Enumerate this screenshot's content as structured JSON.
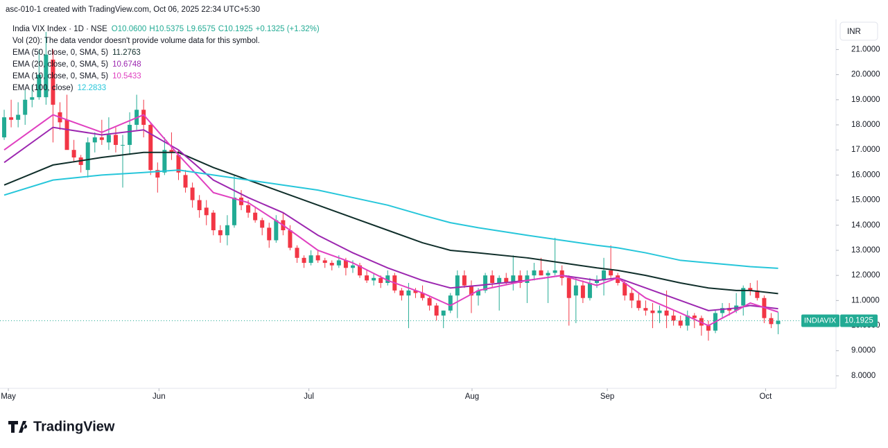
{
  "chart_data": {
    "type": "candlestick",
    "watermark": "asc-010-1 created with TradingView.com, Oct 06, 2025 22:34 UTC+5:30",
    "symbol": "India VIX Index · 1D · NSE",
    "ohlc_labels": [
      "O10.0600",
      "H10.5375",
      "L9.6575",
      "C10.1925",
      "+0.1325 (+1.32%)"
    ],
    "volume_note": "Vol (20): The data vendor doesn't provide volume data for this symbol.",
    "currency": "INR",
    "brand": "TradingView",
    "up_color": "#22ab94",
    "down_color": "#f23645",
    "price_tag": {
      "name": "INDIAVIX",
      "value": 10.1925,
      "label": "10.1925"
    },
    "candles": {
      "open": [
        17.5,
        18.3,
        18.2,
        18.4,
        19.0,
        19.1,
        19.1,
        20.6,
        18.5,
        18.2,
        17.0,
        16.7,
        16.2,
        17.3,
        17.5,
        17.3,
        17.6,
        17.2,
        17.2,
        18.0,
        18.6,
        18.0,
        16.2,
        16.1,
        17.0,
        16.8,
        16.0,
        15.5,
        15.0,
        14.7,
        14.5,
        13.8,
        13.6,
        14.0,
        15.1,
        14.8,
        14.5,
        14.2,
        13.9,
        13.4,
        14.2,
        13.8,
        13.1,
        12.7,
        12.5,
        12.8,
        12.6,
        12.5,
        12.4,
        12.6,
        12.3,
        12.4,
        12.0,
        11.8,
        11.9,
        11.7,
        12.0,
        11.4,
        11.2,
        11.4,
        11.3,
        11.1,
        10.8,
        10.4,
        10.6,
        11.2,
        12.0,
        11.6,
        11.2,
        11.4,
        12.0,
        11.7,
        11.9,
        11.7,
        12.0,
        11.7,
        12.0,
        12.2,
        12.0,
        12.1,
        12.2,
        11.9,
        11.2,
        11.6,
        11.1,
        11.7,
        11.8,
        12.2,
        12.0,
        11.7,
        11.3,
        11.0,
        10.7,
        10.6,
        10.5,
        10.6,
        10.4,
        10.2,
        10.0,
        10.4,
        10.3,
        10.0,
        9.8,
        10.5,
        10.7,
        10.6,
        10.8,
        11.5,
        11.4,
        11.1,
        10.3,
        10.06
      ],
      "high": [
        18.6,
        19.0,
        18.9,
        19.4,
        19.6,
        21.0,
        21.7,
        21.0,
        18.9,
        19.2,
        17.4,
        16.8,
        17.5,
        17.7,
        18.2,
        18.3,
        17.9,
        17.6,
        18.5,
        19.2,
        19.0,
        18.1,
        16.5,
        17.5,
        17.7,
        17.0,
        16.2,
        15.7,
        15.2,
        15.0,
        14.6,
        14.0,
        14.4,
        16.0,
        15.4,
        15.0,
        14.7,
        14.3,
        14.1,
        14.4,
        14.5,
        14.0,
        13.2,
        12.8,
        13.0,
        13.0,
        12.7,
        12.6,
        12.8,
        12.7,
        12.6,
        12.5,
        12.2,
        12.1,
        12.0,
        12.2,
        12.1,
        11.5,
        11.7,
        11.5,
        11.6,
        11.2,
        10.9,
        10.6,
        11.3,
        12.2,
        12.2,
        11.8,
        11.5,
        12.1,
        12.2,
        12.0,
        12.1,
        12.8,
        12.2,
        12.2,
        12.5,
        12.7,
        12.2,
        13.5,
        12.4,
        12.0,
        11.9,
        11.8,
        11.9,
        12.0,
        12.7,
        13.2,
        12.1,
        11.8,
        11.5,
        11.3,
        11.0,
        10.9,
        10.8,
        11.4,
        10.6,
        10.4,
        10.6,
        10.5,
        10.4,
        10.2,
        10.6,
        10.9,
        10.9,
        11.3,
        11.6,
        11.7,
        11.8,
        11.2,
        10.5,
        10.5375
      ],
      "low": [
        17.4,
        17.9,
        17.9,
        18.0,
        18.7,
        19.0,
        18.8,
        17.3,
        17.8,
        17.2,
        16.5,
        16.1,
        15.9,
        16.9,
        17.2,
        17.0,
        16.9,
        15.5,
        16.8,
        17.8,
        17.5,
        16.0,
        15.3,
        16.0,
        16.6,
        15.8,
        15.3,
        14.7,
        14.3,
        14.0,
        13.6,
        13.3,
        13.2,
        13.9,
        14.6,
        14.3,
        14.1,
        13.6,
        13.1,
        13.3,
        13.6,
        13.0,
        12.5,
        12.3,
        12.4,
        12.5,
        12.3,
        12.2,
        12.3,
        12.0,
        12.1,
        11.9,
        11.7,
        11.6,
        11.5,
        11.6,
        11.3,
        11.0,
        9.9,
        11.1,
        11.0,
        10.6,
        10.2,
        9.9,
        10.5,
        10.3,
        11.5,
        10.5,
        10.8,
        11.3,
        11.5,
        10.6,
        11.6,
        11.4,
        11.5,
        10.9,
        11.8,
        12.0,
        10.9,
        12.0,
        11.6,
        10.0,
        10.1,
        10.9,
        11.0,
        11.5,
        11.2,
        11.9,
        11.6,
        11.0,
        10.7,
        10.6,
        10.4,
        9.9,
        10.1,
        9.9,
        10.0,
        9.9,
        9.8,
        9.9,
        9.6,
        9.4,
        9.7,
        10.3,
        10.4,
        10.5,
        10.4,
        11.2,
        11.0,
        10.1,
        9.9,
        9.6575
      ],
      "close": [
        18.3,
        18.2,
        18.4,
        19.0,
        19.1,
        20.0,
        20.8,
        18.8,
        18.1,
        17.0,
        16.7,
        16.4,
        17.3,
        17.5,
        17.4,
        17.6,
        17.2,
        17.2,
        18.0,
        18.6,
        18.0,
        16.2,
        15.9,
        17.0,
        16.9,
        16.1,
        15.5,
        15.0,
        14.6,
        14.4,
        13.8,
        13.6,
        14.0,
        15.1,
        14.8,
        14.5,
        14.2,
        13.9,
        13.4,
        14.2,
        13.8,
        13.1,
        12.7,
        12.5,
        12.8,
        12.6,
        12.5,
        12.4,
        12.6,
        12.3,
        12.4,
        12.0,
        11.8,
        11.9,
        11.7,
        12.0,
        11.4,
        11.2,
        11.4,
        11.3,
        11.1,
        10.8,
        10.4,
        10.6,
        11.2,
        12.0,
        11.6,
        11.2,
        11.4,
        12.0,
        11.7,
        11.9,
        11.7,
        12.0,
        11.7,
        12.0,
        12.2,
        12.0,
        12.1,
        12.2,
        11.9,
        11.1,
        11.6,
        11.1,
        11.7,
        11.8,
        12.2,
        12.0,
        11.7,
        11.2,
        11.0,
        10.7,
        10.6,
        10.5,
        10.6,
        10.4,
        10.2,
        10.0,
        10.4,
        10.3,
        10.0,
        9.8,
        10.5,
        10.7,
        10.6,
        10.8,
        11.5,
        11.4,
        11.1,
        10.3,
        10.06,
        10.1925
      ]
    },
    "series": [
      {
        "name": "EMA (50, close, 0, SMA, 5)",
        "value_label": "11.2763",
        "color": "#0f2e2a",
        "x": [
          0,
          7,
          14,
          20,
          25,
          30,
          35,
          40,
          45,
          50,
          55,
          60,
          64,
          68,
          75,
          80,
          85,
          88,
          92,
          97,
          101,
          105,
          107,
          111
        ],
        "values": [
          15.6,
          16.4,
          16.7,
          16.9,
          16.9,
          16.3,
          15.8,
          15.3,
          14.8,
          14.3,
          13.8,
          13.3,
          13.0,
          12.9,
          12.7,
          12.5,
          12.3,
          12.2,
          12.0,
          11.7,
          11.5,
          11.4,
          11.4,
          11.2763
        ]
      },
      {
        "name": "EMA (20, close, 0, SMA, 5)",
        "value_label": "10.6748",
        "color": "#9c27b0",
        "x": [
          0,
          7,
          14,
          20,
          25,
          30,
          35,
          40,
          45,
          50,
          55,
          60,
          64,
          68,
          75,
          80,
          85,
          88,
          92,
          97,
          101,
          105,
          107,
          111
        ],
        "values": [
          16.5,
          17.9,
          17.6,
          17.8,
          17.0,
          15.8,
          15.1,
          14.5,
          13.6,
          12.9,
          12.3,
          11.8,
          11.5,
          11.6,
          11.8,
          12.0,
          11.8,
          11.9,
          11.5,
          11.0,
          10.6,
          10.7,
          10.8,
          10.6748
        ]
      },
      {
        "name": "EMA (10, close, 0, SMA, 5)",
        "value_label": "10.5433",
        "color": "#e040c0",
        "x": [
          0,
          7,
          14,
          20,
          25,
          30,
          35,
          40,
          45,
          50,
          55,
          60,
          64,
          68,
          75,
          80,
          85,
          88,
          92,
          97,
          101,
          105,
          107,
          111
        ],
        "values": [
          17.0,
          18.4,
          17.7,
          18.4,
          16.8,
          15.3,
          14.9,
          14.0,
          13.0,
          12.5,
          11.8,
          11.3,
          10.8,
          11.4,
          11.8,
          12.0,
          11.6,
          11.9,
          11.1,
          10.5,
          10.0,
          10.6,
          10.9,
          10.5433
        ]
      },
      {
        "name": "EMA (100, close)",
        "value_label": "12.2833",
        "color": "#26c6da",
        "x": [
          0,
          7,
          14,
          20,
          25,
          30,
          35,
          40,
          45,
          50,
          55,
          60,
          64,
          68,
          75,
          80,
          85,
          88,
          92,
          97,
          101,
          105,
          107,
          111
        ],
        "values": [
          15.2,
          15.8,
          16.0,
          16.1,
          16.2,
          16.0,
          15.8,
          15.6,
          15.4,
          15.1,
          14.8,
          14.4,
          14.1,
          13.9,
          13.6,
          13.4,
          13.2,
          13.1,
          12.9,
          12.6,
          12.5,
          12.4,
          12.35,
          12.2833
        ]
      }
    ],
    "ylim": [
      7.5,
      22.2
    ],
    "yticks": [
      {
        "value": 8,
        "label": "8.0000"
      },
      {
        "value": 9,
        "label": "9.0000"
      },
      {
        "value": 10,
        "label": "10.0000"
      },
      {
        "value": 11,
        "label": "11.0000"
      },
      {
        "value": 12,
        "label": "12.0000"
      },
      {
        "value": 13,
        "label": "13.0000"
      },
      {
        "value": 14,
        "label": "14.0000"
      },
      {
        "value": 15,
        "label": "15.0000"
      },
      {
        "value": 16,
        "label": "16.0000"
      },
      {
        "value": 17,
        "label": "17.0000"
      },
      {
        "value": 18,
        "label": "18.0000"
      },
      {
        "value": 19,
        "label": "19.0000"
      },
      {
        "value": 20,
        "label": "20.0000"
      },
      {
        "value": 21,
        "label": "21.0000"
      }
    ],
    "xlim": [
      -0.6,
      119.3
    ],
    "xticks": [
      {
        "value": 0.6,
        "label": "May"
      },
      {
        "value": 22.2,
        "label": "Jun"
      },
      {
        "value": 43.7,
        "label": "Jul"
      },
      {
        "value": 67.1,
        "label": "Aug"
      },
      {
        "value": 86.5,
        "label": "Sep"
      },
      {
        "value": 109.2,
        "label": "Oct"
      }
    ]
  }
}
